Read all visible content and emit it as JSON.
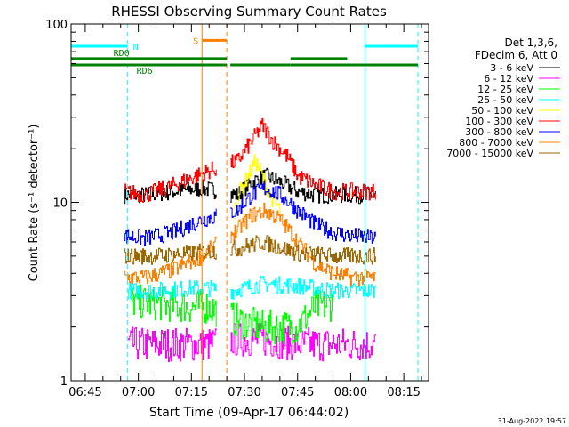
{
  "chart_data": {
    "type": "line",
    "title": "RHESSI Observing Summary Count Rates",
    "xlabel": "Start Time (09-Apr-17 06:44:02)",
    "ylabel": "Count Rate (s⁻¹ detector⁻¹)",
    "y_scale": "log",
    "ylim": [
      1,
      100
    ],
    "xlim": [
      "06:41",
      "08:22"
    ],
    "x_ticks": [
      "06:45",
      "07:00",
      "07:15",
      "07:30",
      "07:45",
      "08:00",
      "08:15"
    ],
    "y_ticks": [
      "1",
      "10",
      "100"
    ],
    "grid": false,
    "legend_placement": "top-right",
    "legend_header": [
      "Det 1,3,6,",
      "FDecim 6, Att 0"
    ],
    "footer_date": "31-Aug-2022 19:57",
    "series": [
      {
        "name": "3 - 6 keV",
        "color": "#000000",
        "x": [
          "06:56",
          "07:02",
          "07:10",
          "07:18",
          "07:28",
          "07:32",
          "07:36",
          "07:40",
          "07:45",
          "07:50",
          "07:55",
          "08:00",
          "08:07"
        ],
        "values": [
          11,
          11,
          11.5,
          12,
          11,
          13,
          14,
          13,
          11.5,
          11,
          11,
          11,
          11
        ]
      },
      {
        "name": "6 - 12 keV",
        "color": "#ff00ff",
        "x": [
          "06:57",
          "07:05",
          "07:15",
          "07:20",
          "07:27",
          "07:35",
          "07:45",
          "07:55",
          "08:07"
        ],
        "values": [
          1.6,
          1.6,
          1.6,
          1.6,
          1.7,
          1.7,
          1.6,
          1.6,
          1.6
        ]
      },
      {
        "name": "12 - 25 keV",
        "color": "#00ff00",
        "x": [
          "06:58",
          "07:05",
          "07:15",
          "07:20",
          "07:27",
          "07:35",
          "07:45",
          "07:50",
          "07:55"
        ],
        "values": [
          2.8,
          2.7,
          2.6,
          2.6,
          2.2,
          2.0,
          2.0,
          2.6,
          2.7
        ]
      },
      {
        "name": "25 - 50 keV",
        "color": "#00ffff",
        "x": [
          "06:57",
          "07:05",
          "07:15",
          "07:20",
          "07:27",
          "07:35",
          "07:45",
          "07:55",
          "08:07"
        ],
        "values": [
          3.2,
          3.2,
          3.3,
          3.3,
          3.2,
          3.5,
          3.4,
          3.2,
          3.2
        ]
      },
      {
        "name": "50 - 100 keV",
        "color": "#ffff00",
        "x": [
          "07:27",
          "07:29",
          "07:31",
          "07:33",
          "07:35",
          "07:37",
          "07:40"
        ],
        "values": [
          9,
          12,
          14,
          17,
          14,
          11,
          9
        ]
      },
      {
        "name": "100 - 300 keV",
        "color": "#ff0000",
        "x": [
          "06:56",
          "07:02",
          "07:10",
          "07:18",
          "07:28",
          "07:32",
          "07:35",
          "07:38",
          "07:42",
          "07:45",
          "07:50",
          "07:55",
          "08:00",
          "08:07"
        ],
        "values": [
          11.5,
          11,
          12.5,
          14.5,
          17,
          22,
          27,
          22,
          18,
          14,
          12.5,
          11.5,
          11.5,
          11.5
        ]
      },
      {
        "name": "300 - 800 keV",
        "color": "#0000ff",
        "x": [
          "06:56",
          "07:02",
          "07:10",
          "07:18",
          "07:28",
          "07:32",
          "07:36",
          "07:40",
          "07:45",
          "07:50",
          "07:55",
          "08:00",
          "08:07"
        ],
        "values": [
          6.5,
          6.3,
          6.8,
          8,
          9,
          11,
          12,
          11,
          9,
          7.5,
          6.8,
          6.5,
          6.3
        ]
      },
      {
        "name": "800 - 7000 keV",
        "color": "#ff8000",
        "x": [
          "06:56",
          "07:02",
          "07:10",
          "07:18",
          "07:28",
          "07:32",
          "07:36",
          "07:40",
          "07:45",
          "07:50",
          "07:55",
          "08:00",
          "08:07"
        ],
        "values": [
          3.8,
          3.8,
          4.2,
          5,
          7,
          8.5,
          9,
          8,
          6,
          4.5,
          4,
          3.8,
          3.8
        ]
      },
      {
        "name": "7000 - 15000 keV",
        "color": "#996600",
        "x": [
          "06:56",
          "07:05",
          "07:15",
          "07:28",
          "07:35",
          "07:45",
          "07:55",
          "08:07"
        ],
        "values": [
          5,
          5,
          5.2,
          5.5,
          6,
          5.2,
          5,
          5
        ]
      }
    ],
    "flags": [
      {
        "label": "N",
        "color": "#00ffff",
        "level": 75,
        "x": [
          [
            "06:41",
            "06:57"
          ],
          [
            "08:04",
            "08:19"
          ]
        ]
      },
      {
        "label": "RD0",
        "color": "#008000",
        "level": 64,
        "x": [
          [
            "06:41",
            "07:25"
          ],
          [
            "07:43",
            "07:59"
          ]
        ]
      },
      {
        "label": "RD6",
        "color": "#008000",
        "level": 59,
        "x": [
          [
            "06:41",
            "07:25"
          ],
          [
            "07:26",
            "07:43"
          ],
          [
            "07:43",
            "08:19"
          ]
        ]
      },
      {
        "label": "S",
        "color": "#ff8000",
        "level": 81,
        "x": [
          [
            "07:18",
            "07:25"
          ]
        ]
      }
    ],
    "markers": [
      {
        "time": "06:41",
        "color": "#00ffff",
        "style": "solid"
      },
      {
        "time": "06:57",
        "color": "#00ffff",
        "style": "dashed"
      },
      {
        "time": "07:18",
        "color": "#ff8000",
        "style": "solid"
      },
      {
        "time": "07:25",
        "color": "#ff8000",
        "style": "dashed"
      },
      {
        "time": "08:04",
        "color": "#00ffff",
        "style": "solid"
      },
      {
        "time": "08:19",
        "color": "#00ffff",
        "style": "dashed"
      }
    ]
  }
}
